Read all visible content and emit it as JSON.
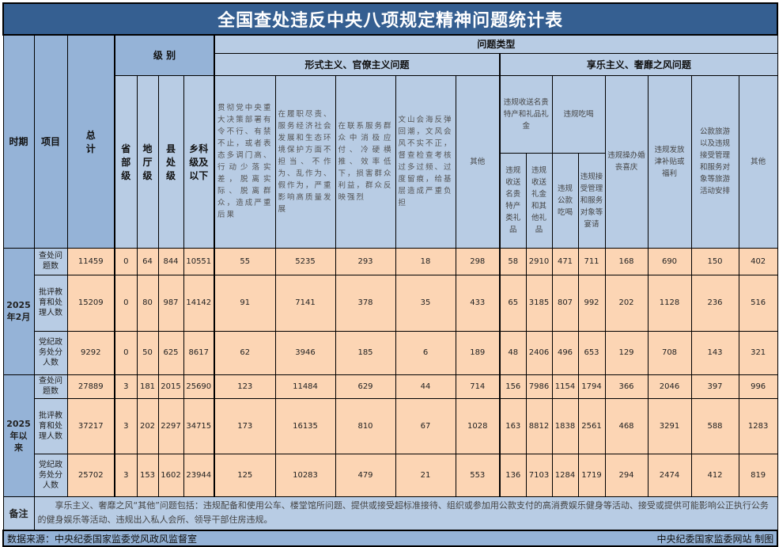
{
  "title": "全国查处违反中央八项规定精神问题统计表",
  "headers": {
    "period": "时期",
    "item": "项目",
    "total": "总计",
    "level": "级 别",
    "problem_type": "问题类型",
    "levels": [
      "省部级",
      "地厅级",
      "县处级",
      "乡科级及以下"
    ],
    "formalism": "形式主义、官僚主义问题",
    "formalism_cols": [
      "贯彻党中央重大决策部署有令不行、有禁不止，或者表态多调门高、行动少落实差，脱离实际、脱离群众，造成严重后果",
      "在履职尽责、服务经济社会发展和生态环境保护方面不担当、不作为、乱作为、假作为，严重影响高质量发展",
      "在联系服务群众中消极应付、冷硬横推、效率低下，损害群众利益，群众反映强烈",
      "文山会海反弹回潮，文风会风不实不正，督查检查考核过多过频、过度留痕，给基层造成严重负担",
      "其他"
    ],
    "hedonism": "享乐主义、奢靡之风问题",
    "gift_group": "违规收送名贵特产和礼品礼金",
    "gift_cols": [
      "违规收送名贵特产类礼品",
      "违规收送礼金和其他礼品"
    ],
    "dining_group": "违规吃喝",
    "dining_cols": [
      "违规公款吃喝",
      "违规接受管理和服务对象等宴请"
    ],
    "other_hedonism_cols": [
      "违规操办婚丧喜庆",
      "违规发放津补贴或福利",
      "公款旅游以及违规接受管理和服务对象等旅游活动安排",
      "其他"
    ]
  },
  "periods": [
    {
      "label": "2025年2月",
      "rows": [
        {
          "item": "查处问题数",
          "values": [
            "11459",
            "0",
            "64",
            "844",
            "10551",
            "55",
            "5235",
            "293",
            "18",
            "298",
            "58",
            "2910",
            "471",
            "711",
            "168",
            "690",
            "150",
            "402"
          ]
        },
        {
          "item": "批评教育和处理人数",
          "values": [
            "15209",
            "0",
            "80",
            "987",
            "14142",
            "91",
            "7141",
            "378",
            "35",
            "433",
            "65",
            "3185",
            "807",
            "992",
            "202",
            "1128",
            "236",
            "516"
          ]
        },
        {
          "item": "党纪政务处分人数",
          "values": [
            "9292",
            "0",
            "50",
            "625",
            "8617",
            "62",
            "3946",
            "185",
            "6",
            "189",
            "48",
            "2406",
            "496",
            "653",
            "129",
            "708",
            "143",
            "321"
          ]
        }
      ]
    },
    {
      "label": "2025年以来",
      "rows": [
        {
          "item": "查处问题数",
          "values": [
            "27889",
            "3",
            "181",
            "2015",
            "25690",
            "123",
            "11484",
            "629",
            "44",
            "714",
            "156",
            "7986",
            "1154",
            "1794",
            "366",
            "2046",
            "397",
            "996"
          ]
        },
        {
          "item": "批评教育和处理人数",
          "values": [
            "37217",
            "3",
            "202",
            "2297",
            "34715",
            "173",
            "16135",
            "810",
            "67",
            "1028",
            "163",
            "8812",
            "1838",
            "2561",
            "468",
            "3291",
            "588",
            "1283"
          ]
        },
        {
          "item": "党纪政务处分人数",
          "values": [
            "25702",
            "3",
            "153",
            "1602",
            "23944",
            "125",
            "10283",
            "479",
            "21",
            "553",
            "136",
            "7103",
            "1284",
            "1719",
            "294",
            "2474",
            "412",
            "819"
          ]
        }
      ]
    }
  ],
  "remark_label": "备注",
  "remark": "享乐主义、奢靡之风“其他”问题包括：违规配备和使用公车、楼堂馆所问题、提供或接受超标准接待、组织或参加用公款支付的高消费娱乐健身等活动、接受或提供可能影响公正执行公务的健身娱乐等活动、违规出入私人会所、领导干部住房违规。",
  "source": "数据来源：中央纪委国家监委党风政风监督室",
  "credit": "中央纪委国家监委网站 制图"
}
